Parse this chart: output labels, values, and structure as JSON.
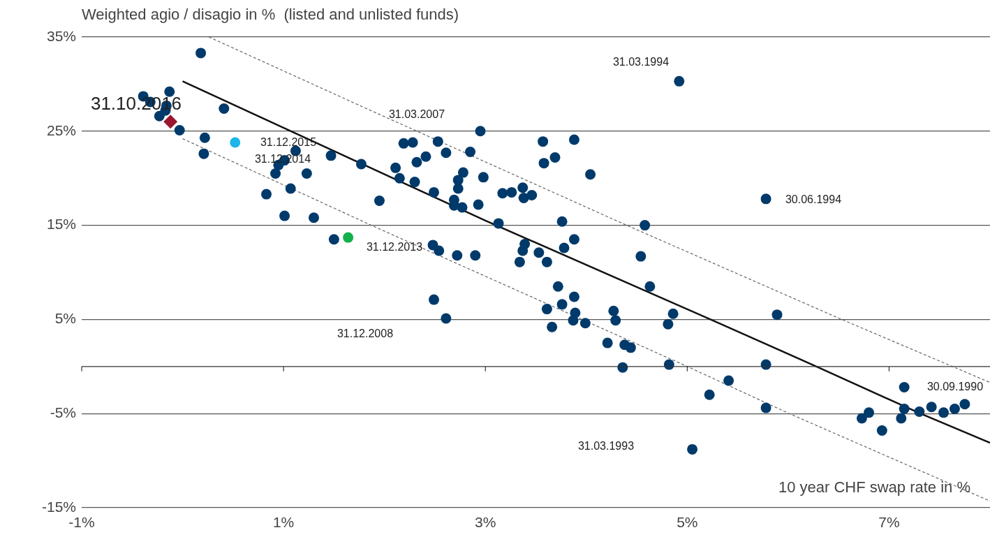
{
  "chart_data": {
    "type": "scatter",
    "ylabel": "Weighted agio / disagio in %  (listed and unlisted funds)",
    "xlabel": "10 year CHF swap rate in %",
    "xlim": [
      -1,
      8
    ],
    "xticks": [
      {
        "value": -1,
        "label": "-1%"
      },
      {
        "value": 1,
        "label": "1%"
      },
      {
        "value": 3,
        "label": "3%"
      },
      {
        "value": 5,
        "label": "5%"
      },
      {
        "value": 7,
        "label": "7%"
      }
    ],
    "ylim": [
      -15,
      35
    ],
    "yticks": [
      {
        "value": -15,
        "label": "-15%"
      },
      {
        "value": -5,
        "label": "-5%"
      },
      {
        "value": 5,
        "label": "5%"
      },
      {
        "value": 15,
        "label": "15%"
      },
      {
        "value": 25,
        "label": "25%"
      },
      {
        "value": 35,
        "label": "35%"
      }
    ],
    "grid": "y",
    "legend": false,
    "marker": "circle",
    "ref_lines": [
      {
        "axis": "y",
        "value": 0,
        "color": "#333333"
      }
    ],
    "series": [
      {
        "color": "#003a6b",
        "x": [
          0.18,
          -0.39,
          -0.32,
          -0.13,
          -0.16,
          -0.17,
          -0.23,
          -0.03,
          0.41,
          0.22,
          0.21,
          1.12,
          1.47,
          1.77,
          1.01,
          0.95,
          0.92,
          1.23,
          1.07,
          0.83,
          1.01,
          1.3,
          1.5,
          2.95,
          2.19,
          2.28,
          2.53,
          2.61,
          2.85,
          2.41,
          2.32,
          2.11,
          2.15,
          2.3,
          2.49,
          1.95,
          2.78,
          2.73,
          2.73,
          2.98,
          2.69,
          2.69,
          2.77,
          2.93,
          3.13,
          3.17,
          3.26,
          3.37,
          3.38,
          3.46,
          3.57,
          3.58,
          3.69,
          3.88,
          4.04,
          3.76,
          3.88,
          3.78,
          3.39,
          3.37,
          3.34,
          3.53,
          3.61,
          2.48,
          2.54,
          2.72,
          2.9,
          4.54,
          3.72,
          3.88,
          3.76,
          3.61,
          3.89,
          3.87,
          3.99,
          3.66,
          4.27,
          4.29,
          2.49,
          2.61,
          4.21,
          4.38,
          4.44,
          4.92,
          5.78,
          4.58,
          4.63,
          5.89,
          4.86,
          4.81,
          5.78,
          4.82,
          4.36,
          5.41,
          5.22,
          5.78,
          5.05,
          7.15,
          7.15,
          7.12,
          6.93,
          6.73,
          6.8,
          7.3,
          7.42,
          7.54,
          7.65,
          7.75
        ],
        "values": [
          33.3,
          28.7,
          28.1,
          29.2,
          27.7,
          27.2,
          26.6,
          25.1,
          27.4,
          24.3,
          22.6,
          22.9,
          22.4,
          21.5,
          21.9,
          21.4,
          20.5,
          20.5,
          18.9,
          18.3,
          16,
          15.8,
          13.5,
          25,
          23.7,
          23.8,
          23.9,
          22.7,
          22.8,
          22.3,
          21.7,
          21.1,
          20,
          19.6,
          18.5,
          17.6,
          20.6,
          19.8,
          18.9,
          20.1,
          17.7,
          17.1,
          16.9,
          17.2,
          15.2,
          18.4,
          18.5,
          19,
          17.9,
          18.2,
          23.9,
          21.6,
          22.2,
          24.1,
          20.4,
          15.4,
          13.5,
          12.6,
          13,
          12.3,
          11.1,
          12.1,
          11.1,
          12.9,
          12.3,
          11.8,
          11.8,
          11.7,
          8.5,
          7.4,
          6.6,
          6.1,
          5.7,
          4.9,
          4.6,
          4.2,
          5.9,
          4.9,
          7.1,
          5.1,
          2.5,
          2.3,
          2,
          30.3,
          17.8,
          15,
          8.5,
          5.5,
          5.6,
          4.5,
          0.2,
          0.2,
          -0.1,
          -1.5,
          -3,
          -4.4,
          -8.8,
          -2.2,
          -4.5,
          -5.5,
          -6.8,
          -5.5,
          -4.9,
          -4.8,
          -4.3,
          -4.9,
          -4.5,
          -4
        ]
      },
      {
        "color": "#9b1730",
        "marker": "diamond",
        "x": [
          -0.12
        ],
        "values": [
          26
        ]
      },
      {
        "color": "#1fb5ea",
        "x": [
          0.52
        ],
        "values": [
          23.8
        ]
      },
      {
        "color": "#12b04b",
        "x": [
          1.64
        ],
        "values": [
          13.7
        ]
      },
      {
        "type": "line",
        "color": "#111111",
        "line_style": "solid",
        "marker": "none",
        "x": [
          0,
          1.78,
          3,
          5.23,
          6.28,
          7.31,
          8
        ],
        "values": [
          30.3,
          21.5,
          15.5,
          5,
          0,
          -5,
          -8.1
        ]
      },
      {
        "type": "line",
        "color": "#666666",
        "line_style": "dashed",
        "marker": "none",
        "x": [
          0.26,
          1.78,
          4.4,
          6.53,
          8
        ],
        "values": [
          35,
          27.6,
          15,
          5,
          -1.7
        ]
      },
      {
        "type": "line",
        "color": "#666666",
        "line_style": "dashed",
        "marker": "none",
        "x": [
          0,
          1.87,
          5,
          6.01,
          8
        ],
        "values": [
          24.2,
          15,
          0,
          -5,
          -14.3
        ]
      }
    ],
    "annotations": [
      "31.10.2016",
      "31.12.2015",
      "31.12.2014",
      "31.12.2013",
      "31.12.2008",
      "31.03.2007",
      "31.03.1994",
      "30.06.1994",
      "31.03.1993",
      "30.09.1990"
    ]
  }
}
